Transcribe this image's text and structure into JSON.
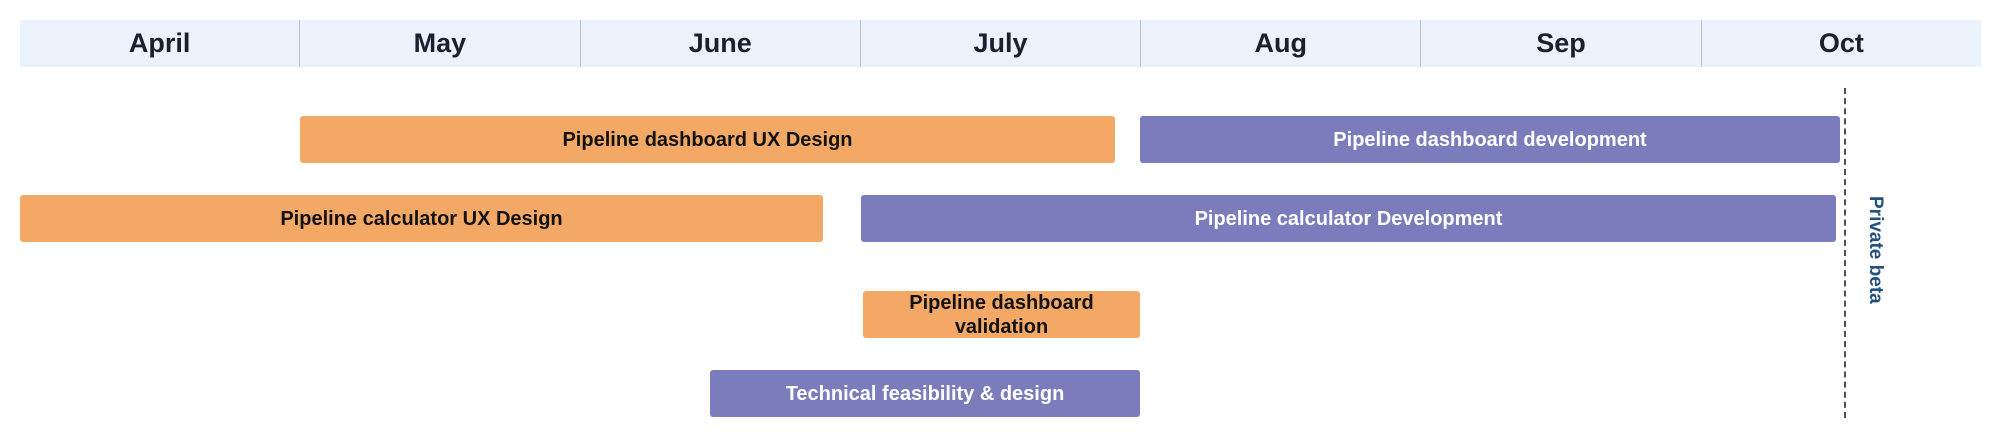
{
  "months": [
    "April",
    "May",
    "June",
    "July",
    "Aug",
    "Sep",
    "Oct"
  ],
  "tasks": [
    {
      "label": "Pipeline dashboard UX Design",
      "color": "#f3a965"
    },
    {
      "label": "Pipeline dashboard development",
      "color": "#7a7cbc"
    },
    {
      "label": "Pipeline calculator UX Design",
      "color": "#f3a965"
    },
    {
      "label": "Pipeline calculator Development",
      "color": "#7a7cbc"
    },
    {
      "label": "Pipeline dashboard validation",
      "color": "#f3a965"
    },
    {
      "label": "Technical feasibility & design",
      "color": "#7a7cbc"
    }
  ],
  "milestone": {
    "label": "Private beta"
  },
  "colors": {
    "header_bg": "#eaf2fc",
    "design": "#f3a965",
    "development": "#7a7cbc",
    "milestone_text": "#23507e"
  }
}
